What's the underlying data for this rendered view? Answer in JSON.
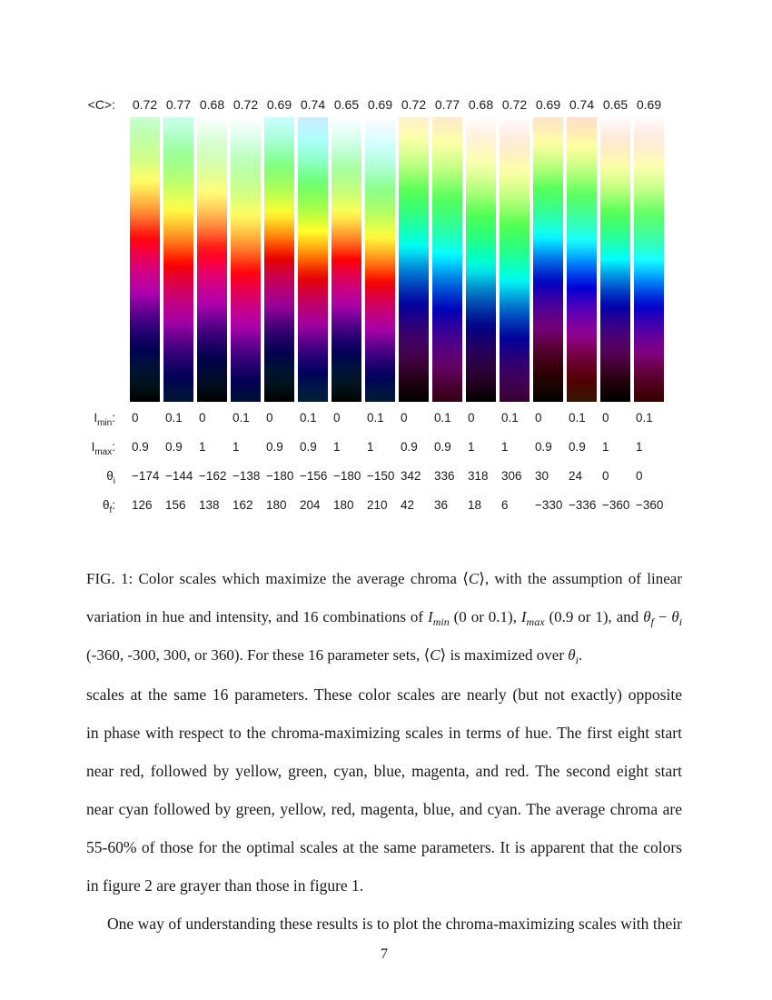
{
  "figure": {
    "avg_chroma_label": "<C>:",
    "row_labels": [
      {
        "base": "I",
        "sub": "min",
        "suffix": ":"
      },
      {
        "base": "I",
        "sub": "max",
        "suffix": ":"
      },
      {
        "base": "θ",
        "sub": "i",
        "suffix": ""
      },
      {
        "base": "θ",
        "sub": "f",
        "suffix": ":"
      }
    ],
    "columns": [
      {
        "avg_chroma": "0.72",
        "i_min": "0",
        "i_max": "0.9",
        "theta_i": -174,
        "theta_f": 126
      },
      {
        "avg_chroma": "0.77",
        "i_min": "0.1",
        "i_max": "0.9",
        "theta_i": -144,
        "theta_f": 156
      },
      {
        "avg_chroma": "0.68",
        "i_min": "0",
        "i_max": "1",
        "theta_i": -162,
        "theta_f": 138
      },
      {
        "avg_chroma": "0.72",
        "i_min": "0.1",
        "i_max": "1",
        "theta_i": -138,
        "theta_f": 162
      },
      {
        "avg_chroma": "0.69",
        "i_min": "0",
        "i_max": "0.9",
        "theta_i": -180,
        "theta_f": 180
      },
      {
        "avg_chroma": "0.74",
        "i_min": "0.1",
        "i_max": "0.9",
        "theta_i": -156,
        "theta_f": 204
      },
      {
        "avg_chroma": "0.65",
        "i_min": "0",
        "i_max": "1",
        "theta_i": -180,
        "theta_f": 180
      },
      {
        "avg_chroma": "0.69",
        "i_min": "0.1",
        "i_max": "1",
        "theta_i": -150,
        "theta_f": 210
      },
      {
        "avg_chroma": "0.72",
        "i_min": "0",
        "i_max": "0.9",
        "theta_i": 342,
        "theta_f": 42
      },
      {
        "avg_chroma": "0.77",
        "i_min": "0.1",
        "i_max": "0.9",
        "theta_i": 336,
        "theta_f": 36
      },
      {
        "avg_chroma": "0.68",
        "i_min": "0",
        "i_max": "1",
        "theta_i": 318,
        "theta_f": 18
      },
      {
        "avg_chroma": "0.72",
        "i_min": "0.1",
        "i_max": "1",
        "theta_i": 306,
        "theta_f": 6
      },
      {
        "avg_chroma": "0.69",
        "i_min": "0",
        "i_max": "0.9",
        "theta_i": 30,
        "theta_f": -330
      },
      {
        "avg_chroma": "0.74",
        "i_min": "0.1",
        "i_max": "0.9",
        "theta_i": 24,
        "theta_f": -336
      },
      {
        "avg_chroma": "0.65",
        "i_min": "0",
        "i_max": "1",
        "theta_i": 0,
        "theta_f": -360
      },
      {
        "avg_chroma": "0.69",
        "i_min": "0.1",
        "i_max": "1",
        "theta_i": 0,
        "theta_f": -360
      }
    ]
  },
  "caption": {
    "lines": [
      [
        {
          "t": "FIG. 1:  Color scales which maximize the average chroma "
        },
        {
          "t": "⟨"
        },
        {
          "t": "C",
          "c": "it"
        },
        {
          "t": "⟩"
        },
        {
          "t": ", with the assumption of linear"
        }
      ],
      [
        {
          "t": "variation in hue and intensity, and 16 combinations of "
        },
        {
          "t": "I",
          "c": "it"
        },
        {
          "t": "min",
          "c": "it sb"
        },
        {
          "t": " (0 or 0.1), "
        },
        {
          "t": "I",
          "c": "it"
        },
        {
          "t": "max",
          "c": "it sb"
        },
        {
          "t": " (0.9 or 1), and "
        },
        {
          "t": "θ",
          "c": "it"
        },
        {
          "t": "f",
          "c": "it sb"
        },
        {
          "t": " − "
        },
        {
          "t": "θ",
          "c": "it"
        },
        {
          "t": "i",
          "c": "it sb"
        }
      ],
      [
        {
          "t": "(-360, -300, 300, or 360). For these 16 parameter sets, "
        },
        {
          "t": "⟨"
        },
        {
          "t": "C",
          "c": "it"
        },
        {
          "t": "⟩"
        },
        {
          "t": " is maximized over "
        },
        {
          "t": "θ",
          "c": "it"
        },
        {
          "t": "i",
          "c": "it sb"
        },
        {
          "t": "."
        }
      ]
    ]
  },
  "body": {
    "para1_lines": [
      "scales at the same 16 parameters.  These color scales are nearly (but not exactly) opposite",
      "in phase with respect to the chroma-maximizing scales in terms of hue.  The first eight start",
      "near red, followed by yellow, green, cyan, blue, magenta, and red.  The second eight start",
      "near cyan followed by green, yellow, red, magenta, blue, and cyan.  The average chroma are",
      "55-60% of those for the optimal scales at the same parameters.  It is apparent that the colors",
      "in figure 2 are grayer than those in figure 1."
    ],
    "para2_lines": [
      "One way of understanding these results is to plot the chroma-maximizing scales with their"
    ]
  },
  "page_number": "7"
}
